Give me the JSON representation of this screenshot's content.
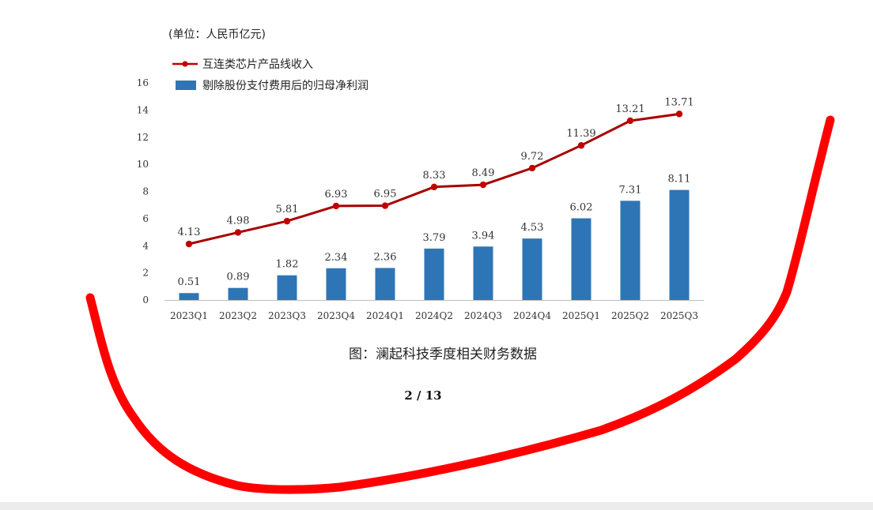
{
  "chart_data": {
    "type": "bar",
    "unit_label": "(单位：人民币亿元)",
    "categories": [
      "2023Q1",
      "2023Q2",
      "2023Q3",
      "2023Q4",
      "2024Q1",
      "2024Q2",
      "2024Q3",
      "2024Q4",
      "2025Q1",
      "2025Q2",
      "2025Q3"
    ],
    "series": [
      {
        "name": "互连类芯片产品线收入",
        "type": "line",
        "color": "#c00000",
        "values": [
          4.13,
          4.98,
          5.81,
          6.93,
          6.95,
          8.33,
          8.49,
          9.72,
          11.39,
          13.21,
          13.71
        ],
        "labels": [
          "4.13",
          "4.98",
          "5.81",
          "6.93",
          "6.95",
          "8.33",
          "8.49",
          "9.72",
          "11.39",
          "13.21",
          "13.71"
        ]
      },
      {
        "name": "剔除股份支付费用后的归母净利润",
        "type": "bar",
        "color": "#2e75b6",
        "values": [
          0.51,
          0.89,
          1.82,
          2.34,
          2.36,
          3.79,
          3.94,
          4.53,
          6.02,
          7.31,
          8.11
        ],
        "labels": [
          "0.51",
          "0.89",
          "1.82",
          "2.34",
          "2.36",
          "3.79",
          "3.94",
          "4.53",
          "6.02",
          "7.31",
          "8.11"
        ]
      }
    ],
    "yticks": [
      0,
      2,
      4,
      6,
      8,
      10,
      12,
      14,
      16
    ],
    "ylim": [
      0,
      16
    ],
    "grid": false,
    "legend": "top-left",
    "caption": "图：澜起科技季度相关财务数据"
  },
  "page_number": "2 / 13",
  "annotation": {
    "color": "#ff0000",
    "shape": "freehand-curve"
  }
}
